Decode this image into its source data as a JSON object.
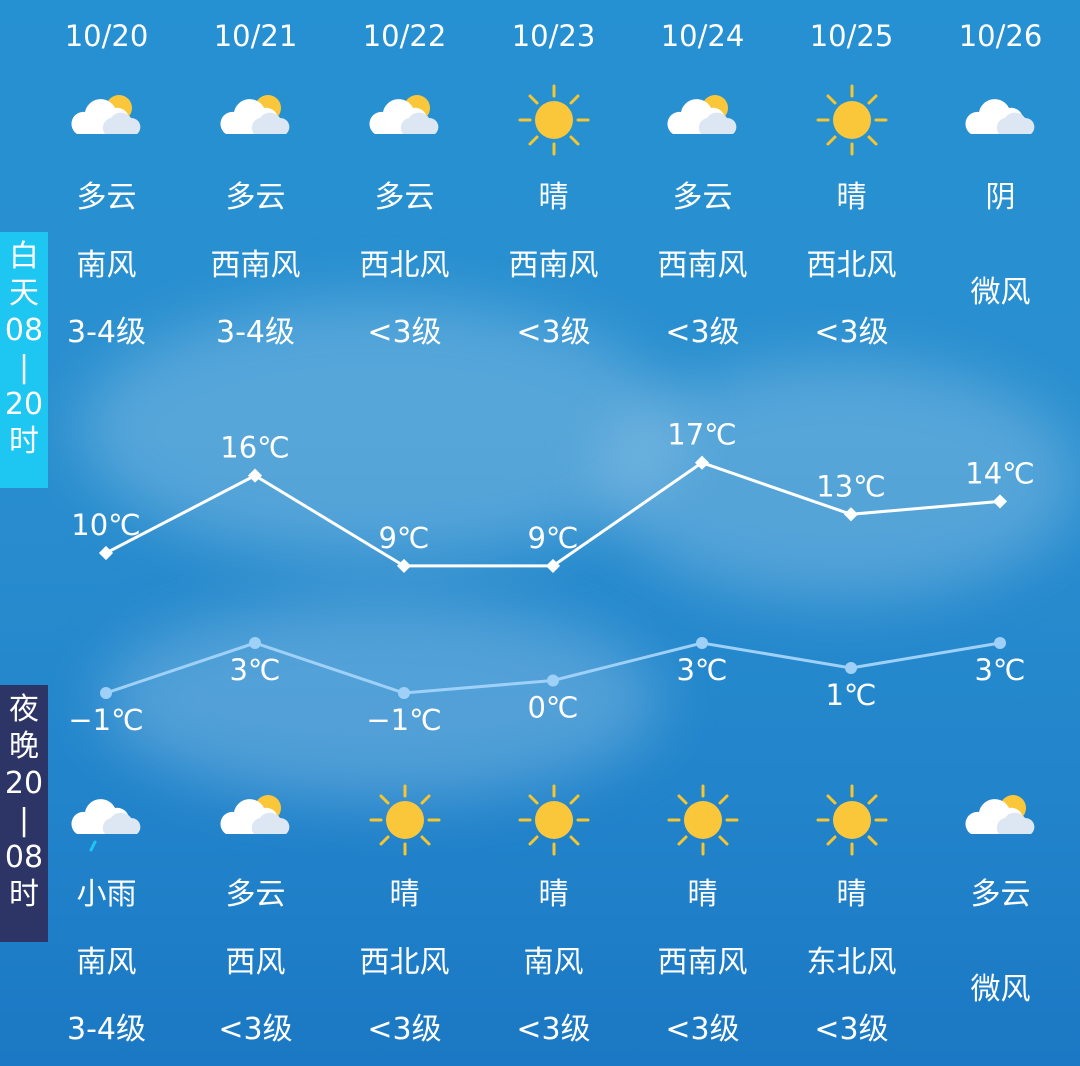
{
  "side_labels": {
    "day": "白天08|20时",
    "night": "夜晚20|08时",
    "day_color": "#1ec6f2",
    "night_color": "#2d3466"
  },
  "days": [
    {
      "date": "10/20",
      "day": {
        "icon": "partly-cloudy",
        "weather": "多云",
        "wind_dir": "南风",
        "wind_level": "3-4级"
      },
      "night": {
        "icon": "light-rain",
        "weather": "小雨",
        "wind_dir": "南风",
        "wind_level": "3-4级"
      }
    },
    {
      "date": "10/21",
      "day": {
        "icon": "partly-cloudy",
        "weather": "多云",
        "wind_dir": "西南风",
        "wind_level": "3-4级"
      },
      "night": {
        "icon": "partly-cloudy",
        "weather": "多云",
        "wind_dir": "西风",
        "wind_level": "<3级"
      }
    },
    {
      "date": "10/22",
      "day": {
        "icon": "partly-cloudy",
        "weather": "多云",
        "wind_dir": "西北风",
        "wind_level": "<3级"
      },
      "night": {
        "icon": "sunny",
        "weather": "晴",
        "wind_dir": "西北风",
        "wind_level": "<3级"
      }
    },
    {
      "date": "10/23",
      "day": {
        "icon": "sunny",
        "weather": "晴",
        "wind_dir": "西南风",
        "wind_level": "<3级"
      },
      "night": {
        "icon": "sunny",
        "weather": "晴",
        "wind_dir": "南风",
        "wind_level": "<3级"
      }
    },
    {
      "date": "10/24",
      "day": {
        "icon": "partly-cloudy",
        "weather": "多云",
        "wind_dir": "西南风",
        "wind_level": "<3级"
      },
      "night": {
        "icon": "sunny",
        "weather": "晴",
        "wind_dir": "西南风",
        "wind_level": "<3级"
      }
    },
    {
      "date": "10/25",
      "day": {
        "icon": "sunny",
        "weather": "晴",
        "wind_dir": "西北风",
        "wind_level": "<3级"
      },
      "night": {
        "icon": "sunny",
        "weather": "晴",
        "wind_dir": "东北风",
        "wind_level": "<3级"
      }
    },
    {
      "date": "10/26",
      "day": {
        "icon": "cloudy",
        "weather": "阴",
        "wind_dir": "",
        "wind_level": "",
        "wind_combined": "微风"
      },
      "night": {
        "icon": "partly-cloudy",
        "weather": "多云",
        "wind_dir": "",
        "wind_level": "",
        "wind_combined": "微风"
      }
    }
  ],
  "chart_data": {
    "type": "line",
    "categories": [
      "10/20",
      "10/21",
      "10/22",
      "10/23",
      "10/24",
      "10/25",
      "10/26"
    ],
    "unit": "℃",
    "series": [
      {
        "values": [
          10,
          16,
          9,
          9,
          17,
          13,
          14
        ],
        "color": "#ffffff"
      },
      {
        "values": [
          -1,
          3,
          -1,
          0,
          3,
          1,
          3
        ],
        "color": "#9fd0f7"
      }
    ],
    "labels_high": [
      "10℃",
      "16℃",
      "9℃",
      "9℃",
      "17℃",
      "13℃",
      "14℃"
    ],
    "labels_low": [
      "−1℃",
      "3℃",
      "−1℃",
      "0℃",
      "3℃",
      "1℃",
      "3℃"
    ]
  }
}
